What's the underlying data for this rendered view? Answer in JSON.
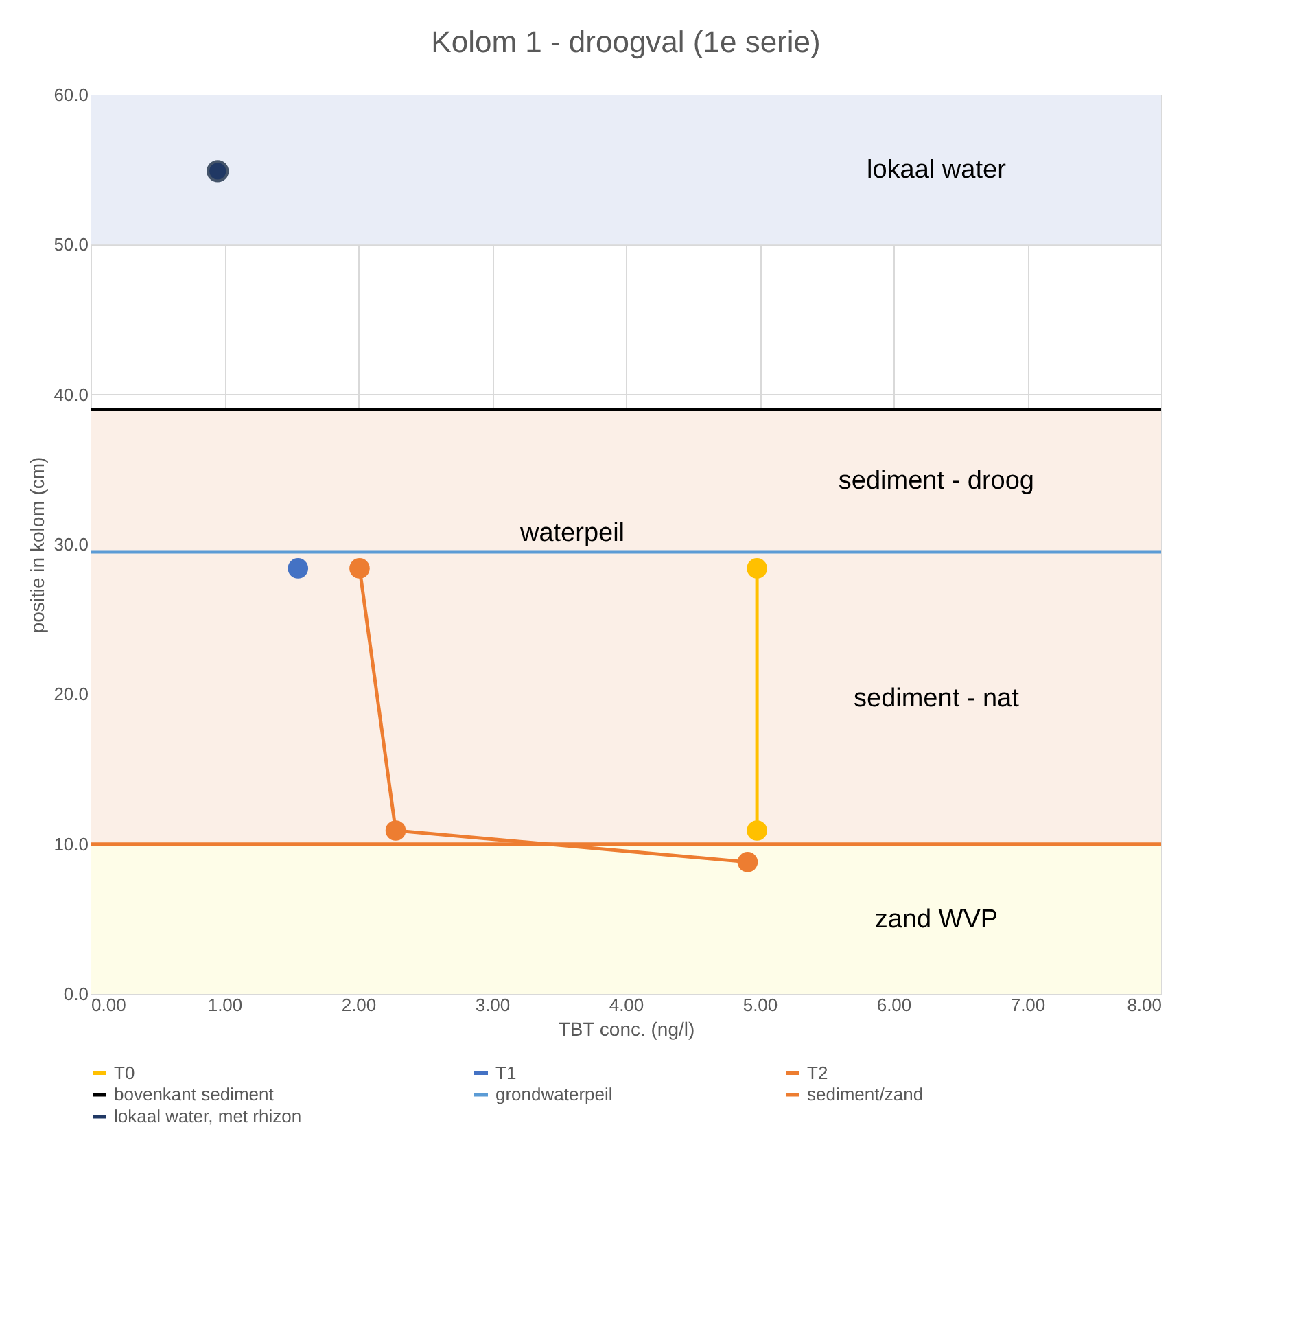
{
  "chart_data": {
    "type": "line",
    "title": "Kolom 1 - droogval (1e serie)",
    "xlabel": "TBT conc. (ng/l)",
    "ylabel": "positie in kolom (cm)",
    "xlim": [
      0,
      8
    ],
    "ylim": [
      0,
      60
    ],
    "xticks": [
      {
        "value": 0,
        "label": "0.00"
      },
      {
        "value": 1,
        "label": "1.00"
      },
      {
        "value": 2,
        "label": "2.00"
      },
      {
        "value": 3,
        "label": "3.00"
      },
      {
        "value": 4,
        "label": "4.00"
      },
      {
        "value": 5,
        "label": "5.00"
      },
      {
        "value": 6,
        "label": "6.00"
      },
      {
        "value": 7,
        "label": "7.00"
      },
      {
        "value": 8,
        "label": "8.00"
      }
    ],
    "yticks": [
      {
        "value": 0,
        "label": "0.0"
      },
      {
        "value": 10,
        "label": "10.0"
      },
      {
        "value": 20,
        "label": "20.0"
      },
      {
        "value": 30,
        "label": "30.0"
      },
      {
        "value": 40,
        "label": "40.0"
      },
      {
        "value": 50,
        "label": "50.0"
      },
      {
        "value": 60,
        "label": "60.0"
      }
    ],
    "grid": true,
    "legend": "bottom",
    "series": [
      {
        "name": "T0",
        "marker": "circle",
        "color": "#ffc000",
        "x": [
          4.98,
          4.98
        ],
        "values": [
          28.4,
          10.9
        ]
      },
      {
        "name": "T1",
        "marker": "circle",
        "color": "#4472c4",
        "x": [
          1.55
        ],
        "values": [
          28.4
        ]
      },
      {
        "name": "T2",
        "marker": "circle",
        "color": "#ed7d31",
        "x": [
          2.01,
          2.28,
          4.91
        ],
        "values": [
          28.4,
          10.9,
          8.8
        ]
      },
      {
        "name": "bovenkant sediment",
        "marker": "none",
        "color": "#000000",
        "x": [
          0,
          8
        ],
        "values": [
          39.0,
          39.0
        ]
      },
      {
        "name": "grondwaterpeil",
        "marker": "none",
        "color": "#5b9bd5",
        "x": [
          0,
          8
        ],
        "values": [
          29.5,
          29.5
        ]
      },
      {
        "name": "sediment/zand",
        "marker": "none",
        "color": "#ed7d31",
        "x": [
          0,
          8
        ],
        "values": [
          10.0,
          10.0
        ]
      },
      {
        "name": "lokaal water, met rhizon",
        "type": "scatter",
        "marker": "circle",
        "color": "#203864",
        "x": [
          0.95
        ],
        "values": [
          54.9
        ]
      }
    ],
    "bands": [
      {
        "axis": "y",
        "from": 50,
        "to": 60,
        "color": "#e9edf7",
        "label": "lokaal water"
      },
      {
        "axis": "y",
        "from": 29.5,
        "to": 39,
        "color": "#fbefe7",
        "label": "sediment - droog"
      },
      {
        "axis": "y",
        "from": 10,
        "to": 29.5,
        "color": "#fbefe7",
        "label": "sediment - nat"
      },
      {
        "axis": "y",
        "from": 0,
        "to": 10,
        "color": "#fefde8",
        "label": "zand WVP"
      }
    ],
    "annotations": [
      {
        "text": "waterpeil",
        "x": 3.6,
        "y": 29.5
      }
    ]
  }
}
